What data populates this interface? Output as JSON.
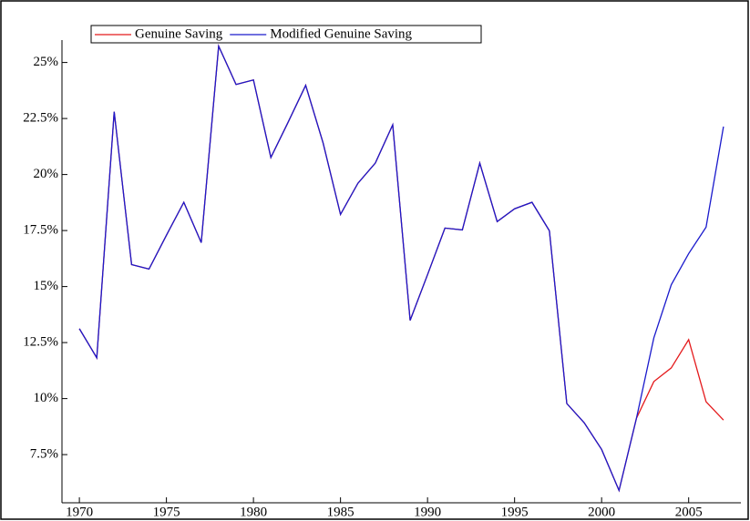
{
  "chart_data": {
    "type": "line",
    "x": [
      1970,
      1971,
      1972,
      1973,
      1974,
      1975,
      1976,
      1977,
      1978,
      1979,
      1980,
      1981,
      1982,
      1983,
      1984,
      1985,
      1986,
      1987,
      1988,
      1989,
      1990,
      1991,
      1992,
      1993,
      1994,
      1995,
      1996,
      1997,
      1998,
      1999,
      2000,
      2001,
      2002,
      2003,
      2004,
      2005,
      2006,
      2007
    ],
    "series": [
      {
        "name": "Genuine Saving",
        "color": "#e41a1c",
        "values": [
          13.12,
          11.82,
          22.8,
          15.98,
          15.78,
          17.29,
          18.76,
          16.96,
          25.73,
          24.02,
          24.22,
          20.76,
          22.35,
          23.98,
          21.41,
          18.22,
          19.61,
          20.51,
          22.22,
          13.49,
          15.53,
          17.61,
          17.53,
          20.51,
          17.9,
          18.47,
          18.76,
          17.49,
          9.78,
          8.92,
          7.73,
          5.9,
          9.12,
          10.76,
          11.37,
          12.63,
          9.86,
          9.04
        ]
      },
      {
        "name": "Modified Genuine Saving",
        "color": "#1a1acc",
        "values": [
          13.12,
          11.82,
          22.8,
          15.98,
          15.78,
          17.29,
          18.76,
          16.96,
          25.73,
          24.02,
          24.22,
          20.76,
          22.35,
          23.98,
          21.41,
          18.22,
          19.61,
          20.51,
          22.22,
          13.49,
          15.53,
          17.61,
          17.53,
          20.51,
          17.9,
          18.47,
          18.76,
          17.49,
          9.78,
          8.92,
          7.73,
          5.9,
          9.12,
          12.71,
          15.08,
          16.47,
          17.65,
          22.14
        ]
      }
    ],
    "xlim": [
      1969,
      2008
    ],
    "xticks": [
      1970,
      1975,
      1980,
      1985,
      1990,
      1995,
      2000,
      2005
    ],
    "ylim": [
      5.35,
      26
    ],
    "yticks": [
      {
        "value": 7.5,
        "label": "7.5%"
      },
      {
        "value": 10,
        "label": "10%"
      },
      {
        "value": 12.5,
        "label": "12.5%"
      },
      {
        "value": 15,
        "label": "15%"
      },
      {
        "value": 17.5,
        "label": "17.5%"
      },
      {
        "value": 20,
        "label": "20%"
      },
      {
        "value": 22.5,
        "label": "22.5%"
      },
      {
        "value": 25,
        "label": "25%"
      }
    ],
    "legend": "top-left"
  }
}
